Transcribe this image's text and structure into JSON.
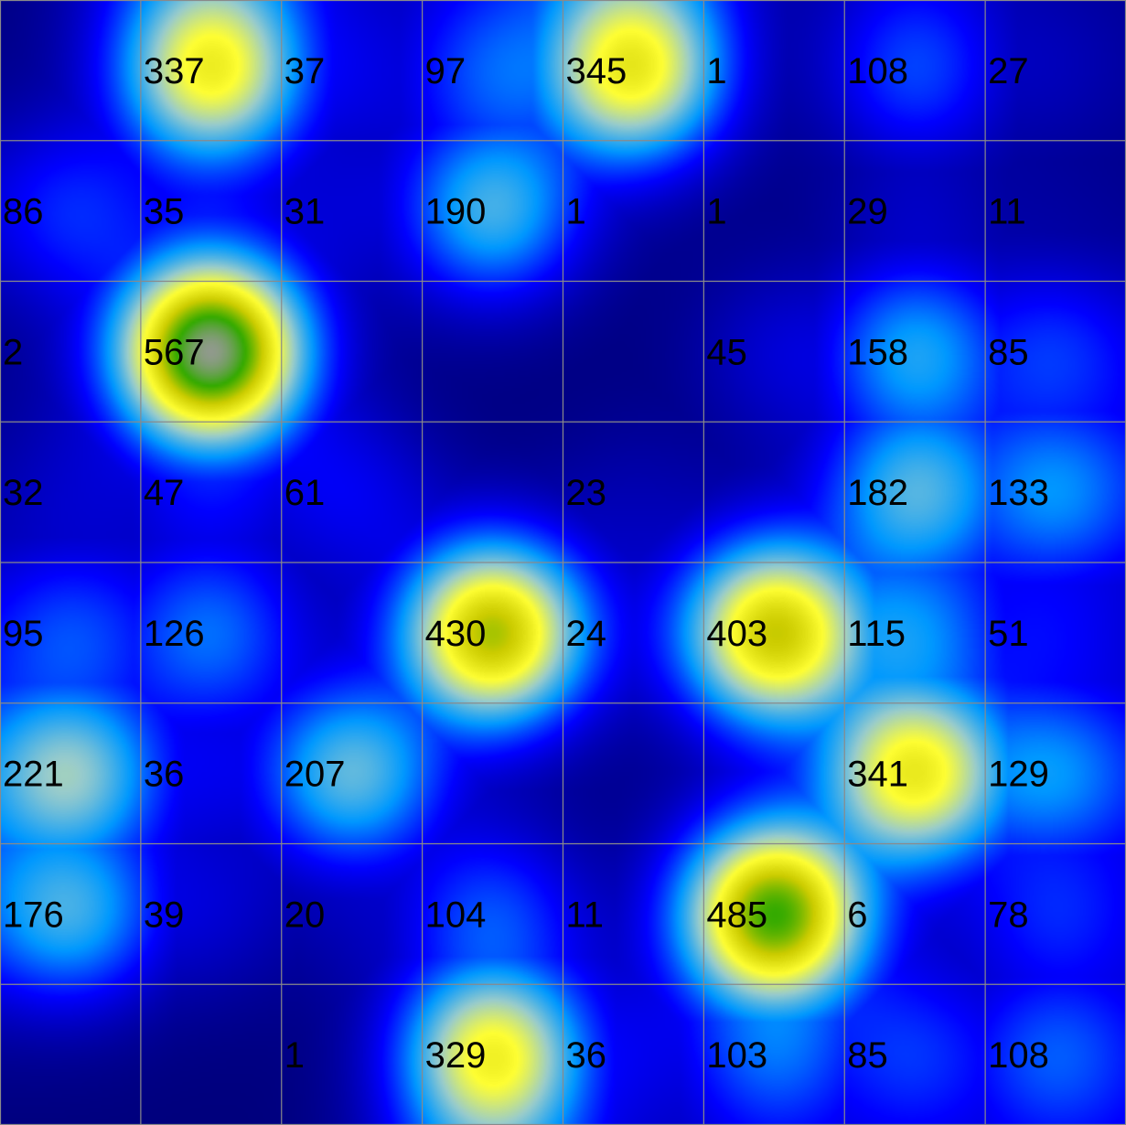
{
  "chart_data": {
    "type": "heatmap",
    "title": "",
    "xlabel": "",
    "ylabel": "",
    "rows": 8,
    "cols": 8,
    "values": [
      [
        null,
        337,
        37,
        97,
        345,
        1,
        108,
        27
      ],
      [
        86,
        35,
        31,
        190,
        1,
        1,
        29,
        11
      ],
      [
        2,
        567,
        null,
        null,
        null,
        45,
        158,
        85
      ],
      [
        32,
        47,
        61,
        null,
        23,
        null,
        182,
        133
      ],
      [
        95,
        126,
        null,
        430,
        24,
        403,
        115,
        51
      ],
      [
        221,
        36,
        207,
        null,
        null,
        null,
        341,
        129
      ],
      [
        176,
        39,
        20,
        104,
        11,
        485,
        6,
        78
      ],
      [
        null,
        null,
        1,
        329,
        36,
        103,
        85,
        108
      ]
    ],
    "labels": [
      [
        "",
        "337",
        "37",
        "97",
        "345",
        "1",
        "108",
        "27"
      ],
      [
        "86",
        "35",
        "31",
        "190",
        "1",
        "1",
        "29",
        "11"
      ],
      [
        "2",
        "567",
        "",
        "",
        "",
        "45",
        "158",
        "85"
      ],
      [
        "32",
        "47",
        "61",
        "",
        "23",
        "",
        "182",
        "133"
      ],
      [
        "95",
        "126",
        "",
        "430",
        "24",
        "403",
        "115",
        "51"
      ],
      [
        "221",
        "36",
        "207",
        "",
        "",
        "",
        "341",
        "129"
      ],
      [
        "176",
        "39",
        "20",
        "104",
        "11",
        "485",
        "6",
        "78"
      ],
      [
        "",
        "",
        "1",
        "329",
        "36",
        "103",
        "85",
        "108"
      ]
    ],
    "colorscale": [
      "#00007a",
      "#0000ff",
      "#0099ff",
      "#99cccc",
      "#ffff33",
      "#cccc00",
      "#33aa00",
      "#999999",
      "#ffffff"
    ],
    "grid": true,
    "grid_color": "#8a8a8a",
    "legend": "none"
  }
}
